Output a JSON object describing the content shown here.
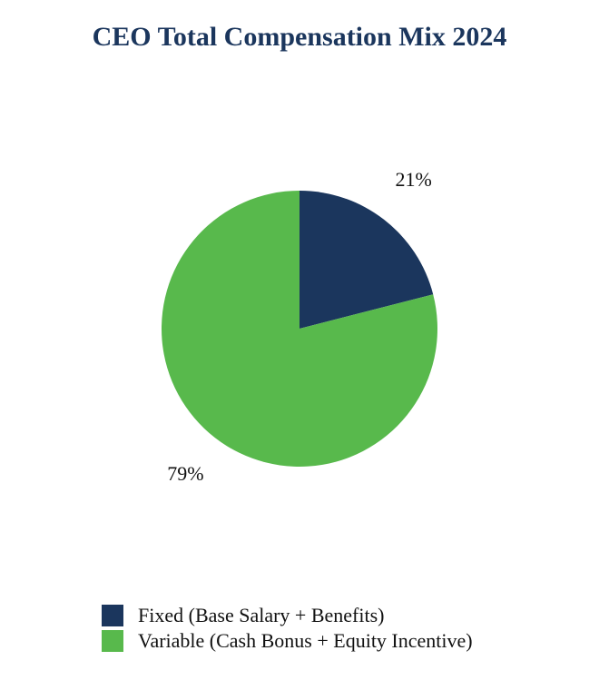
{
  "chart_data": {
    "type": "pie",
    "title": "CEO Total Compensation Mix 2024",
    "slices": [
      {
        "label": "Fixed (Base Salary + Benefits)",
        "value": 21,
        "display": "21%",
        "color": "#1b365d"
      },
      {
        "label": "Variable (Cash Bonus + Equity Incentive)",
        "value": 79,
        "display": "79%",
        "color": "#58b94c"
      }
    ],
    "start_angle": "12 o'clock",
    "direction": "clockwise",
    "legend_position": "bottom-left"
  }
}
